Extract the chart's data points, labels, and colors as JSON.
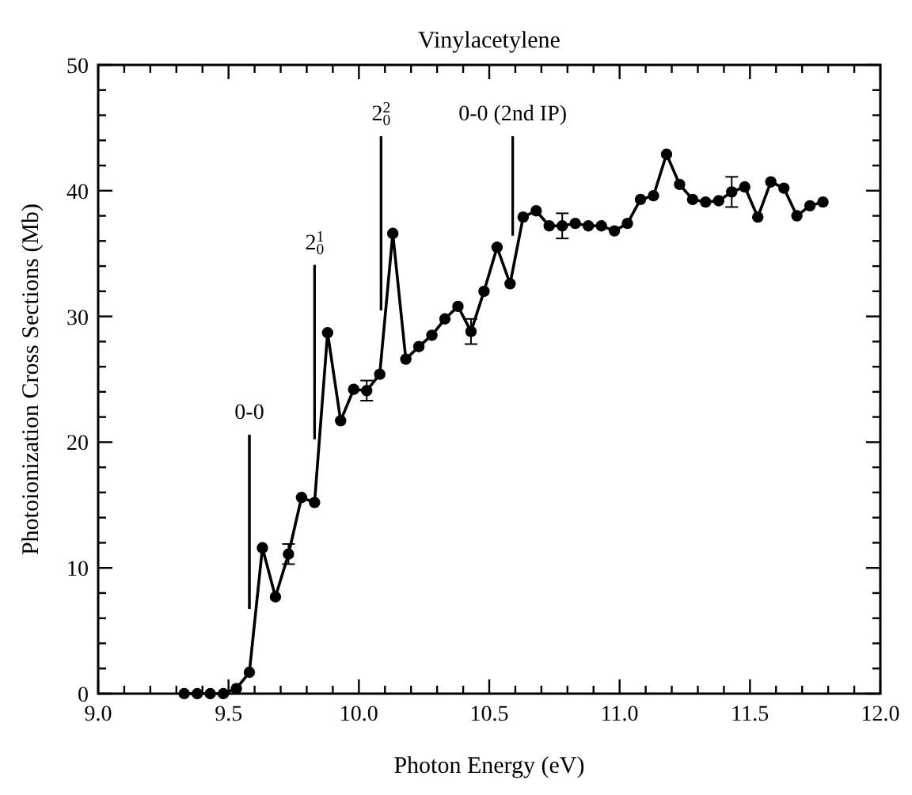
{
  "chart_data": {
    "type": "line",
    "title": "Vinylacetylene",
    "xlabel": "Photon Energy (eV)",
    "ylabel": "Photoionization Cross Sections (Mb)",
    "x": [
      9.33,
      9.38,
      9.43,
      9.48,
      9.53,
      9.58,
      9.63,
      9.68,
      9.73,
      9.78,
      9.83,
      9.88,
      9.93,
      9.98,
      10.03,
      10.08,
      10.13,
      10.18,
      10.23,
      10.28,
      10.33,
      10.38,
      10.43,
      10.48,
      10.53,
      10.58,
      10.63,
      10.68,
      10.73,
      10.78,
      10.83,
      10.88,
      10.93,
      10.98,
      11.03,
      11.08,
      11.13,
      11.18,
      11.23,
      11.28,
      11.33,
      11.38,
      11.43,
      11.48,
      11.53,
      11.58,
      11.63,
      11.68,
      11.73,
      11.78
    ],
    "series": [
      {
        "color": "#000000",
        "values": [
          0,
          0,
          0,
          0,
          0.4,
          1.7,
          11.6,
          7.7,
          11.1,
          15.6,
          15.2,
          28.7,
          21.7,
          24.2,
          24.1,
          25.4,
          36.6,
          26.6,
          27.6,
          28.5,
          29.8,
          30.8,
          28.8,
          32.0,
          35.5,
          32.6,
          37.9,
          38.4,
          37.2,
          37.2,
          37.4,
          37.2,
          37.2,
          36.8,
          37.4,
          39.3,
          39.6,
          42.9,
          40.5,
          39.3,
          39.1,
          39.2,
          39.9,
          40.3,
          37.9,
          40.7,
          40.2,
          38.0,
          38.8,
          39.1
        ],
        "errors": [
          null,
          null,
          null,
          null,
          null,
          null,
          null,
          null,
          0.8,
          null,
          null,
          null,
          null,
          null,
          0.8,
          null,
          null,
          null,
          null,
          null,
          null,
          null,
          1.0,
          null,
          null,
          null,
          null,
          null,
          null,
          1.0,
          null,
          null,
          null,
          null,
          null,
          null,
          null,
          null,
          null,
          null,
          null,
          null,
          1.2,
          null,
          null,
          null,
          null,
          null,
          null,
          null
        ]
      }
    ],
    "marker": "circle",
    "line_style": "solid",
    "grid": false,
    "xlim": [
      9,
      12
    ],
    "ylim": [
      0,
      50
    ],
    "xticks": [
      {
        "value": 9,
        "label": "9.0"
      },
      {
        "value": 9.1,
        "label": null
      },
      {
        "value": 9.2,
        "label": null
      },
      {
        "value": 9.3,
        "label": null
      },
      {
        "value": 9.4,
        "label": null
      },
      {
        "value": 9.5,
        "label": "9.5"
      },
      {
        "value": 9.6,
        "label": null
      },
      {
        "value": 9.7,
        "label": null
      },
      {
        "value": 9.8,
        "label": null
      },
      {
        "value": 9.9,
        "label": null
      },
      {
        "value": 10,
        "label": "10.0"
      },
      {
        "value": 10.1,
        "label": null
      },
      {
        "value": 10.2,
        "label": null
      },
      {
        "value": 10.3,
        "label": null
      },
      {
        "value": 10.4,
        "label": null
      },
      {
        "value": 10.5,
        "label": "10.5"
      },
      {
        "value": 10.6,
        "label": null
      },
      {
        "value": 10.7,
        "label": null
      },
      {
        "value": 10.8,
        "label": null
      },
      {
        "value": 10.9,
        "label": null
      },
      {
        "value": 11,
        "label": "11.0"
      },
      {
        "value": 11.1,
        "label": null
      },
      {
        "value": 11.2,
        "label": null
      },
      {
        "value": 11.3,
        "label": null
      },
      {
        "value": 11.4,
        "label": null
      },
      {
        "value": 11.5,
        "label": "11.5"
      },
      {
        "value": 11.6,
        "label": null
      },
      {
        "value": 11.7,
        "label": null
      },
      {
        "value": 11.8,
        "label": null
      },
      {
        "value": 11.9,
        "label": null
      },
      {
        "value": 12,
        "label": "12.0"
      }
    ],
    "yticks": [
      0,
      {
        "value": 2,
        "label": null
      },
      {
        "value": 4,
        "label": null
      },
      {
        "value": 6,
        "label": null
      },
      {
        "value": 8,
        "label": null
      },
      10,
      {
        "value": 12,
        "label": null
      },
      {
        "value": 14,
        "label": null
      },
      {
        "value": 16,
        "label": null
      },
      {
        "value": 18,
        "label": null
      },
      20,
      {
        "value": 22,
        "label": null
      },
      {
        "value": 24,
        "label": null
      },
      {
        "value": 26,
        "label": null
      },
      {
        "value": 28,
        "label": null
      },
      30,
      {
        "value": 32,
        "label": null
      },
      {
        "value": 34,
        "label": null
      },
      {
        "value": 36,
        "label": null
      },
      {
        "value": 38,
        "label": null
      },
      40,
      {
        "value": 42,
        "label": null
      },
      {
        "value": 44,
        "label": null
      },
      {
        "value": 46,
        "label": null
      },
      {
        "value": 48,
        "label": null
      },
      50
    ],
    "ref_lines": [
      {
        "axis": "x",
        "value": 9.58
      },
      {
        "axis": "x",
        "value": 9.83
      },
      {
        "axis": "x",
        "value": 10.085
      },
      {
        "axis": "x",
        "value": 10.59
      }
    ],
    "annotations": [
      "0-0",
      "2$_{0}$$^{1}$",
      "2$_{0}$$^{2}$",
      "0-0 (2nd IP)"
    ]
  }
}
